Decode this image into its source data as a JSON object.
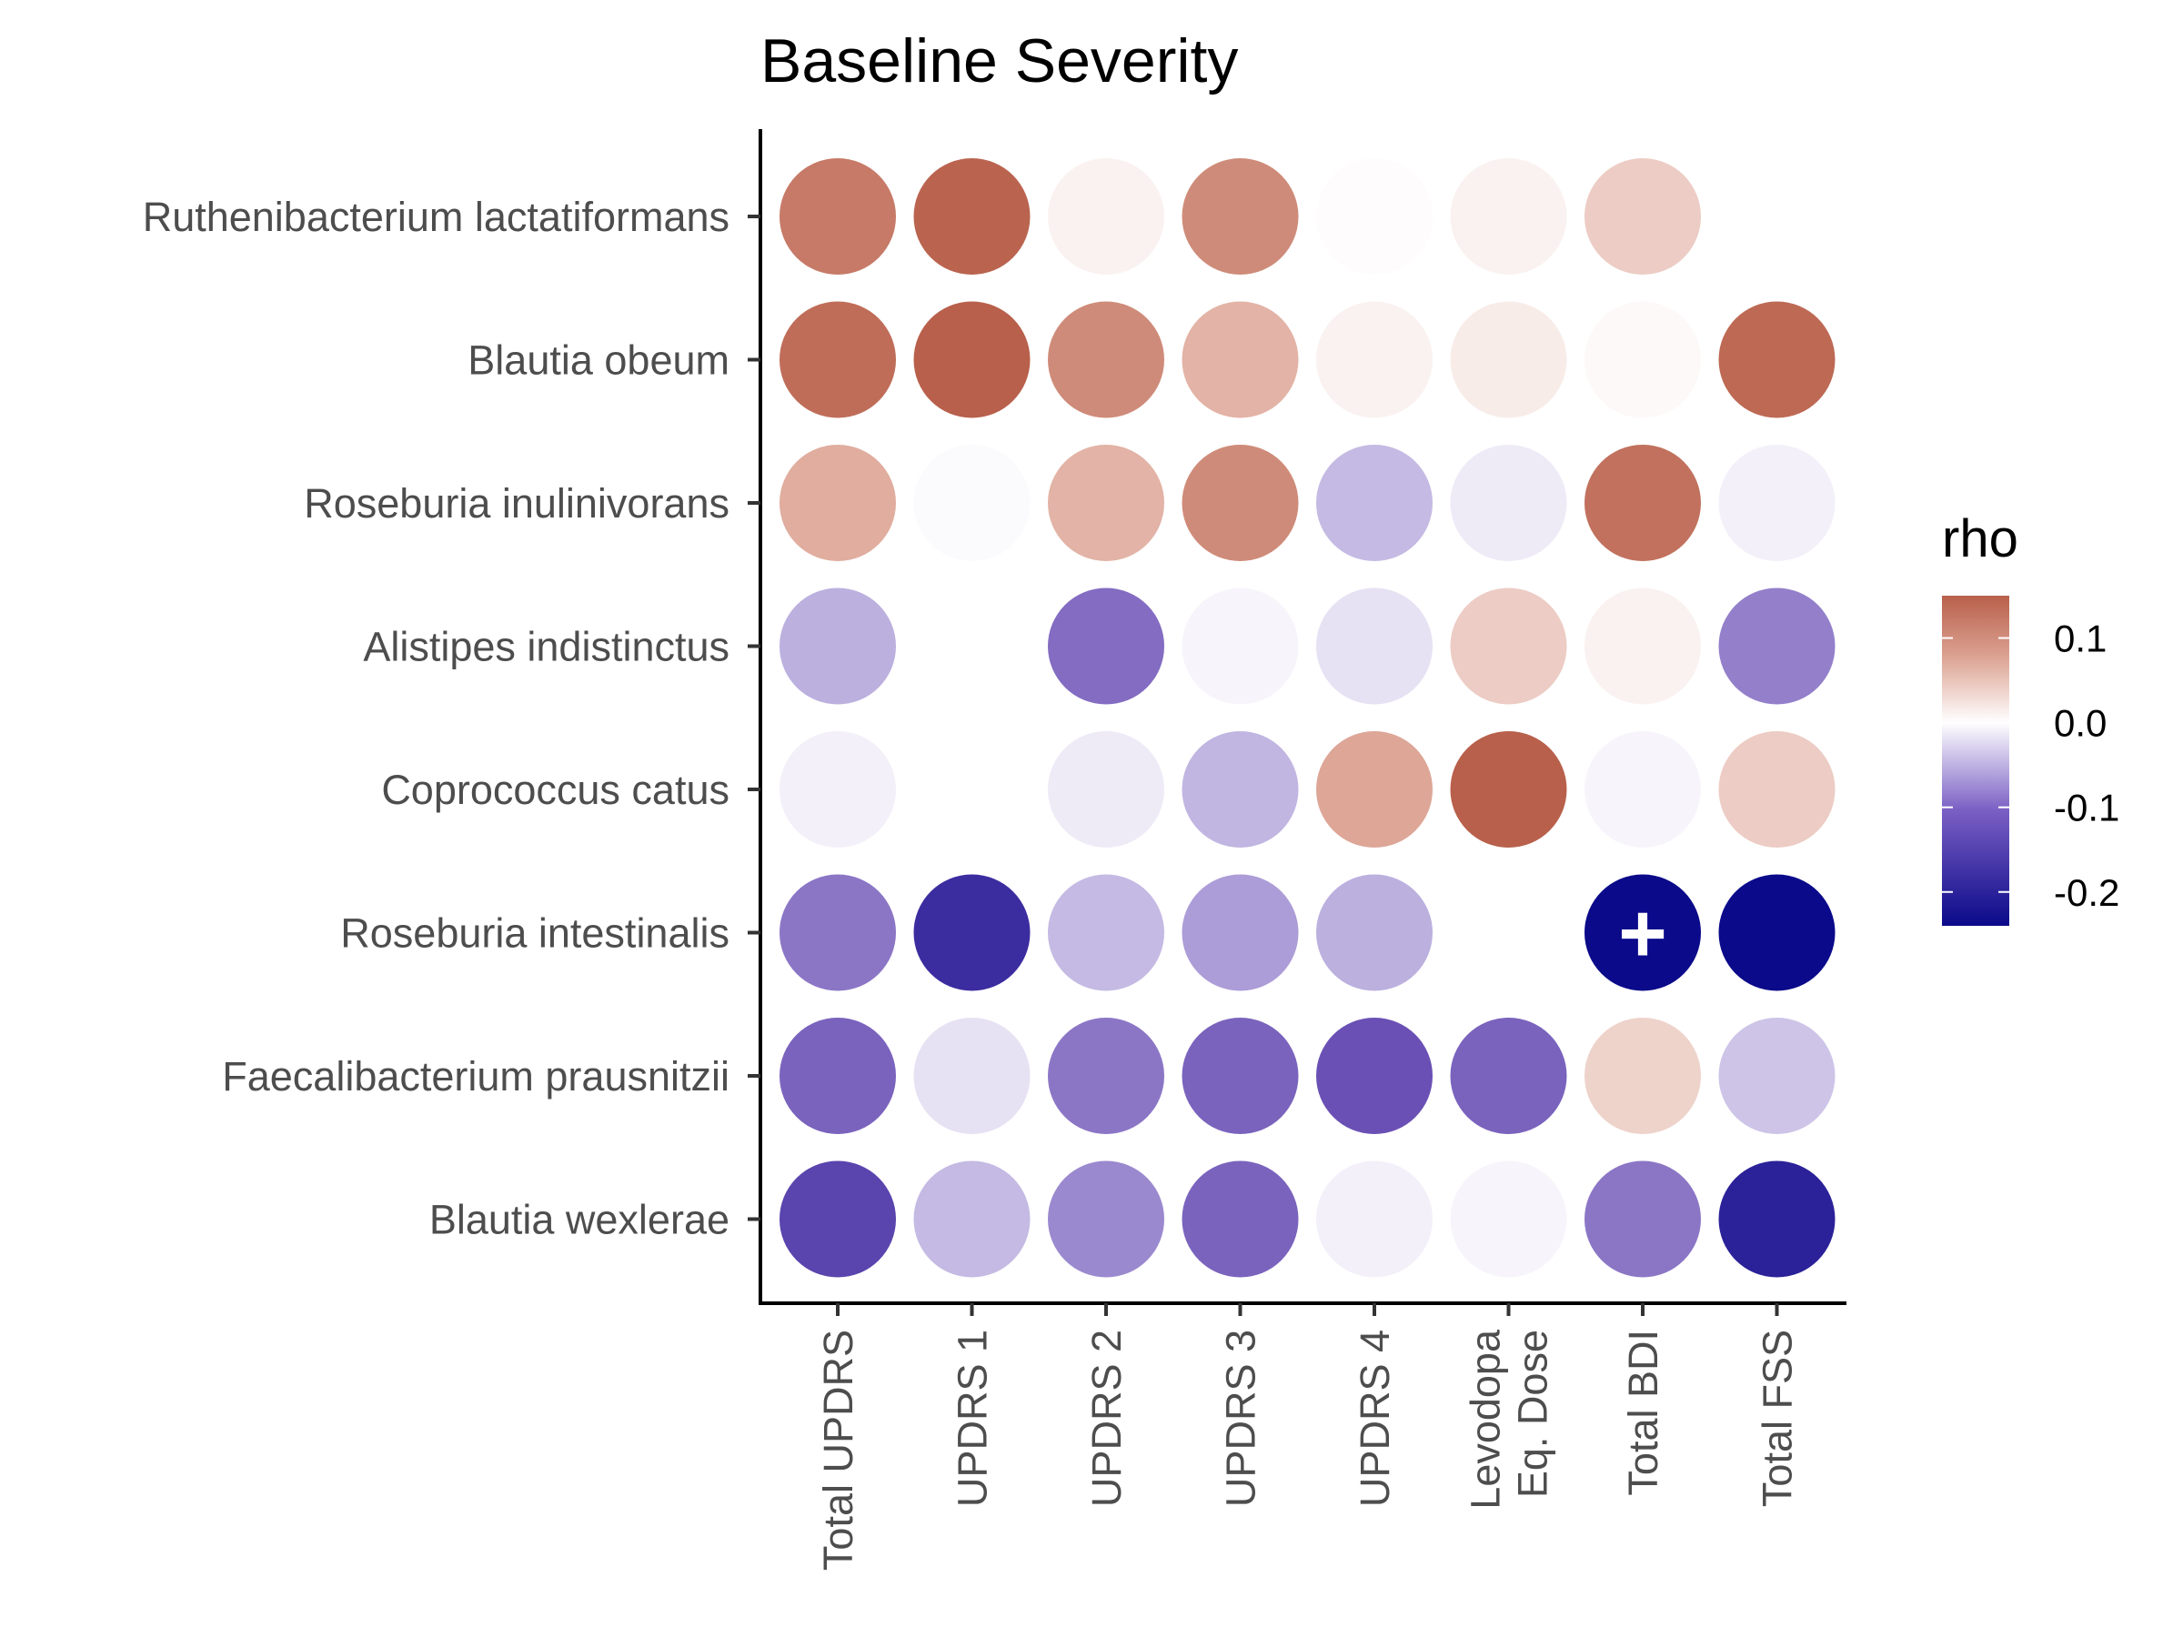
{
  "chart_data": {
    "type": "heatmap",
    "title": "Baseline Severity",
    "xlabel": "",
    "ylabel": "",
    "rows": [
      "Ruthenibacterium lactatiformans",
      "Blautia obeum",
      "Roseburia inulinivorans",
      "Alistipes indistinctus",
      "Coprococcus catus",
      "Roseburia intestinalis",
      "Faecalibacterium prausnitzii",
      "Blautia wexlerae"
    ],
    "columns": [
      [
        "Total UPDRS"
      ],
      [
        "UPDRS 1"
      ],
      [
        "UPDRS 2"
      ],
      [
        "UPDRS 3"
      ],
      [
        "UPDRS 4"
      ],
      [
        "Levodopa",
        "Eq. Dose"
      ],
      [
        "Total BDI"
      ],
      [
        "Total FSS"
      ]
    ],
    "values": [
      [
        0.12,
        0.145,
        0.01,
        0.1,
        0.002,
        0.01,
        0.04,
        0.0
      ],
      [
        0.135,
        0.15,
        0.1,
        0.06,
        0.01,
        0.015,
        0.005,
        0.14
      ],
      [
        0.065,
        -0.005,
        0.06,
        0.1,
        -0.07,
        -0.02,
        0.13,
        -0.015
      ],
      [
        -0.08,
        0.0,
        -0.15,
        -0.01,
        -0.03,
        0.04,
        0.01,
        -0.13
      ],
      [
        -0.015,
        0.0,
        -0.02,
        -0.075,
        0.07,
        0.15,
        -0.01,
        0.04
      ],
      [
        -0.14,
        -0.21,
        -0.07,
        -0.1,
        -0.08,
        0.0,
        -0.24,
        -0.24
      ],
      [
        -0.16,
        -0.03,
        -0.14,
        -0.16,
        -0.18,
        -0.16,
        0.035,
        -0.06
      ],
      [
        -0.19,
        -0.07,
        -0.12,
        -0.16,
        -0.015,
        -0.01,
        -0.14,
        -0.22
      ]
    ],
    "significance_markers": [
      {
        "row": "Roseburia intestinalis",
        "column": "Total BDI",
        "symbol": "+"
      }
    ],
    "legend": {
      "title": "rho",
      "position": "right",
      "range": [
        -0.24,
        0.15
      ],
      "ticks": [
        0.1,
        0.0,
        -0.1,
        -0.2
      ],
      "tick_labels": [
        "0.1",
        "0.0",
        "-0.1",
        "-0.2"
      ],
      "colors": {
        "high": "#b8604b",
        "mid": "#ffffff",
        "low": "#0b0a8a"
      }
    },
    "grid": false
  }
}
